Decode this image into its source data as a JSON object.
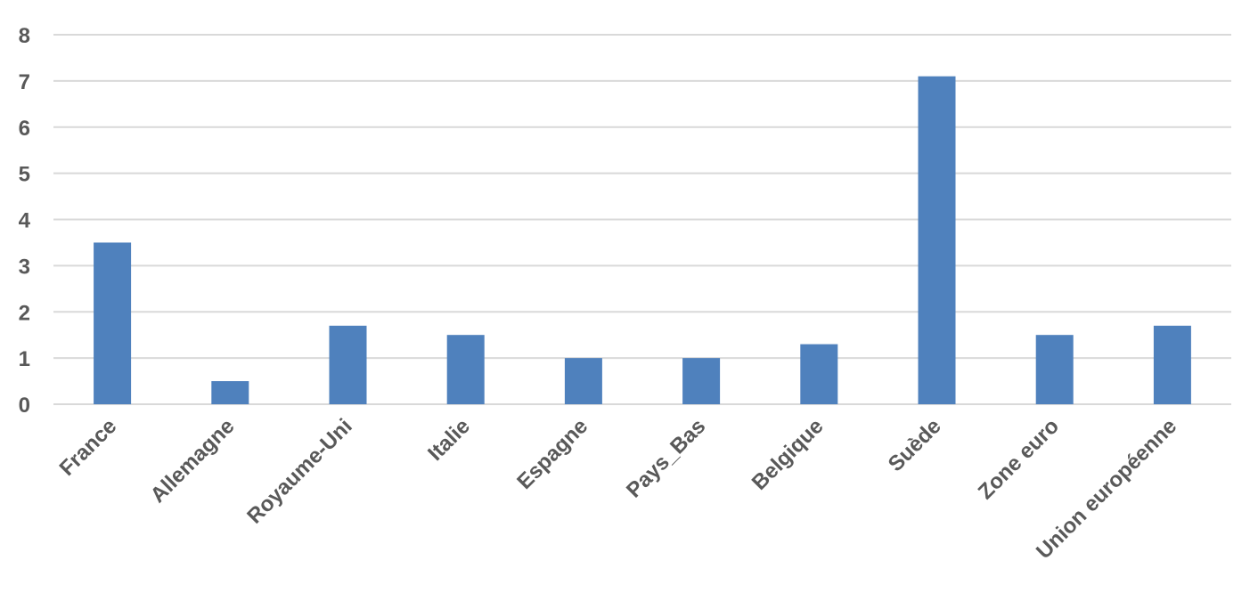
{
  "chart_data": {
    "type": "bar",
    "title": "",
    "xlabel": "",
    "ylabel": "",
    "categories": [
      "France",
      "Allemagne",
      "Royaume-Uni",
      "Italie",
      "Espagne",
      "Pays_Bas",
      "Belgique",
      "Suède",
      "Zone euro",
      "Union européenne"
    ],
    "values": [
      3.5,
      0.5,
      1.7,
      1.5,
      1.0,
      1.0,
      1.3,
      7.1,
      1.5,
      1.7
    ],
    "ylim": [
      0,
      8
    ],
    "yticks": [
      "0",
      "1",
      "2",
      "3",
      "4",
      "5",
      "6",
      "7",
      "8"
    ],
    "grid": true,
    "legend": "none",
    "bar_color": "#4f81bd",
    "grid_color": "#d9d9d9",
    "label_color": "#595959"
  }
}
